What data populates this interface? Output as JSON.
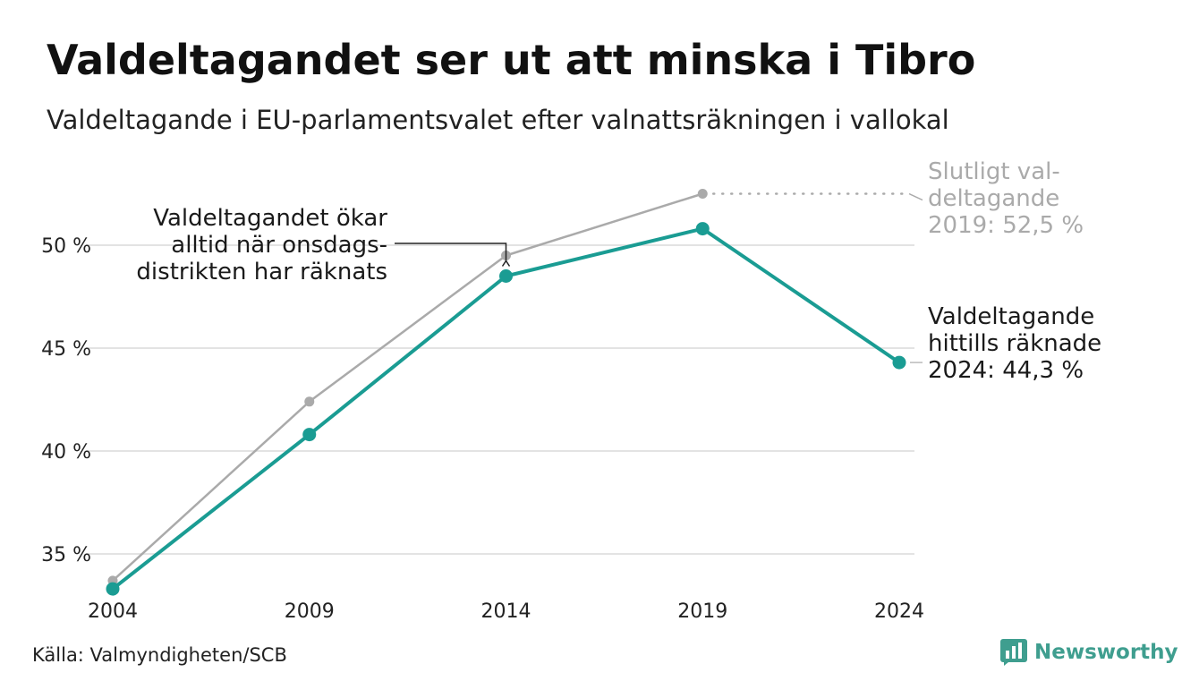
{
  "header": {
    "title": "Valdeltagandet ser ut att minska i Tibro",
    "subtitle": "Valdeltagande i EU-parlamentsvalet efter valnattsräkningen i vallokal"
  },
  "footer": {
    "source": "Källa: Valmyndigheten/SCB",
    "brand": "Newsworthy"
  },
  "colors": {
    "counted": "#1a9c93",
    "final": "#aaaaaa",
    "grid": "#e3e3e3",
    "brand": "#3f9e8f"
  },
  "chart_data": {
    "type": "line",
    "title": "Valdeltagandet ser ut att minska i Tibro",
    "subtitle": "Valdeltagande i EU-parlamentsvalet efter valnattsräkningen i vallokal",
    "xlabel": "",
    "ylabel": "",
    "x": [
      "2004",
      "2009",
      "2014",
      "2019",
      "2024"
    ],
    "ylim": [
      32,
      54
    ],
    "yticks": [
      35,
      40,
      45,
      50
    ],
    "ytick_labels": [
      "35 %",
      "40 %",
      "45 %",
      "50 %"
    ],
    "grid": true,
    "series": [
      {
        "key": "final",
        "values": [
          33.7,
          42.4,
          49.5,
          52.5,
          null
        ]
      },
      {
        "key": "counted",
        "values": [
          33.3,
          40.8,
          48.5,
          50.8,
          44.3
        ]
      }
    ],
    "annotations": {
      "left": [
        "Valdeltagandet ökar",
        "alltid när onsdags-",
        "distrikten har räknats"
      ],
      "final": [
        "Slutligt val-",
        "deltagande",
        "2019: 52,5 %"
      ],
      "counted": [
        "Valdeltagande",
        "hittills räknade",
        "2024: 44,3 %"
      ]
    }
  }
}
